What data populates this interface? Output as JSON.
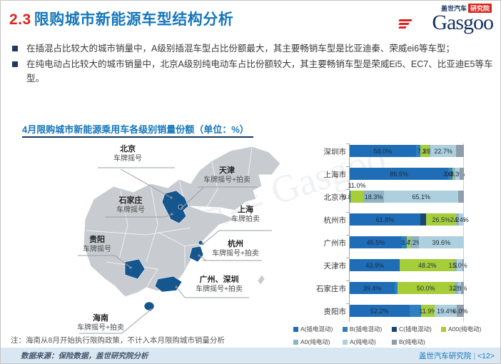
{
  "header": {
    "title_number": "2.3",
    "title_text": "限购城市新能源车型结构分析",
    "logo": {
      "badge_brand": "盖世汽车",
      "badge_unit": "研究院",
      "wordmark": "Gasgoo"
    }
  },
  "bullets": [
    "在插混占比较大的城市销量中，A级别插混车型占比份额最大，其主要畅销车型是比亚迪秦、荣威ei6等车型；",
    "在纯电动占比较大的城市销量中，北京A级别纯电动车占比份额较大，其主要畅销车型是荣威Ei5、EC7、比亚迪E5等车型。"
  ],
  "panel": {
    "title": "4月限购城市新能源乘用车各级别销量份额（单位：%）"
  },
  "map": {
    "watermark": "盖世汽车 Gasgoo",
    "callouts": [
      {
        "city": "北京",
        "policy": "车牌摇号"
      },
      {
        "city": "天津",
        "policy": "车牌摇号+拍卖"
      },
      {
        "city": "石家庄",
        "policy": "车牌摇号"
      },
      {
        "city": "上海",
        "policy": "车牌拍卖"
      },
      {
        "city": "贵阳",
        "policy": "车牌摇号"
      },
      {
        "city": "杭州",
        "policy": "车牌摇号+拍卖"
      },
      {
        "city": "广州、深圳",
        "policy": "车牌摇号+拍卖"
      },
      {
        "city": "海南",
        "policy": "车牌摇号+拍卖"
      }
    ]
  },
  "chart_data": {
    "type": "bar",
    "orientation": "horizontal_stacked",
    "unit": "%",
    "xlim": [
      0,
      100
    ],
    "title": "4月限购城市新能源乘用车各级别销量份额（单位：%）",
    "categories": [
      "深圳市",
      "上海市",
      "北京市",
      "杭州市",
      "广州市",
      "天津市",
      "石家庄市",
      "贵阳市"
    ],
    "series_names": [
      "A(插电混动)",
      "B(插电混动)",
      "C(插电混动)",
      "A00(纯电动)",
      "A0(纯电动)",
      "A(纯电动)",
      "B(纯电动)"
    ],
    "series_colors": {
      "A(插电混动)": "#1f6db6",
      "B(插电混动)": "#2f7fc1",
      "C(插电混动)": "#1c4670",
      "A00(纯电动)": "#a5ce39",
      "A0(纯电动)": "#8fb4c4",
      "A(纯电动)": "#aecfdd",
      "B(纯电动)": "#8d9dab"
    },
    "rows": [
      {
        "city": "深圳市",
        "segments": [
          {
            "series": "A(插电混动)",
            "value": 58.0,
            "label": "58.0%"
          },
          {
            "series": "B(插电混动)",
            "value": 4.0,
            "label": "",
            "estimated": true
          },
          {
            "series": "A00(纯电动)",
            "value": 7.3,
            "label": "7.3%"
          },
          {
            "series": "A0(纯电动)",
            "value": 1.3,
            "label": "1.3%"
          },
          {
            "series": "A(纯电动)",
            "value": 22.7,
            "label": "22.7%"
          },
          {
            "series": "B(纯电动)",
            "value": 6.7,
            "label": "",
            "estimated": true
          }
        ]
      },
      {
        "city": "上海市",
        "segments": [
          {
            "series": "A(插电混动)",
            "value": 86.5,
            "label": "86.5%"
          },
          {
            "series": "B(插电混动)",
            "value": 3.6,
            "label": "3.6%"
          },
          {
            "series": "A00(纯电动)",
            "value": 0.6,
            "label": "0.6%"
          },
          {
            "series": "A0(纯电动)",
            "value": 2.0,
            "label": "",
            "estimated": true
          },
          {
            "series": "A(纯电动)",
            "value": 3.3,
            "label": "3.3%"
          },
          {
            "series": "B(纯电动)",
            "value": 4.0,
            "label": "",
            "estimated": true
          }
        ]
      },
      {
        "city": "北京市",
        "segments": [
          {
            "series": "A(插电混动)",
            "value": 0.8,
            "label": "0.8%"
          },
          {
            "series": "A00(纯电动)",
            "value": 11.0,
            "label": "11.0%",
            "label_above": true
          },
          {
            "series": "A0(纯电动)",
            "value": 18.3,
            "label": "18.3%"
          },
          {
            "series": "A(纯电动)",
            "value": 65.1,
            "label": "65.1%"
          },
          {
            "series": "B(纯电动)",
            "value": 4.8,
            "label": "",
            "estimated": true
          }
        ]
      },
      {
        "city": "杭州市",
        "segments": [
          {
            "series": "A(插电混动)",
            "value": 61.8,
            "label": "61.8%"
          },
          {
            "series": "C(插电混动)",
            "value": 5.1,
            "label": "",
            "estimated": true
          },
          {
            "series": "A00(纯电动)",
            "value": 26.5,
            "label": "26.5%"
          },
          {
            "series": "A0(纯电动)",
            "value": 2.2,
            "label": "2.2%"
          },
          {
            "series": "A(纯电动)",
            "value": 4.4,
            "label": "4.4%"
          }
        ]
      },
      {
        "city": "广州市",
        "segments": [
          {
            "series": "A(插电混动)",
            "value": 45.5,
            "label": "45.5%"
          },
          {
            "series": "B(插电混动)",
            "value": 4.3,
            "label": "",
            "estimated": true
          },
          {
            "series": "A00(纯电动)",
            "value": 3.4,
            "label": "3.4%"
          },
          {
            "series": "A0(纯电动)",
            "value": 7.2,
            "label": "7.2%"
          },
          {
            "series": "A(纯电动)",
            "value": 39.6,
            "label": "39.6%"
          }
        ]
      },
      {
        "city": "天津市",
        "segments": [
          {
            "series": "A(插电混动)",
            "value": 43.9,
            "label": "43.9%"
          },
          {
            "series": "A00(纯电动)",
            "value": 48.2,
            "label": "48.2%"
          },
          {
            "series": "A0(纯电动)",
            "value": 1.9,
            "label": "1.9%"
          },
          {
            "series": "A(纯电动)",
            "value": 5.0,
            "label": "5.0%"
          },
          {
            "series": "B(纯电动)",
            "value": 1.0,
            "label": "",
            "estimated": true
          }
        ]
      },
      {
        "city": "石家庄市",
        "segments": [
          {
            "series": "A(插电混动)",
            "value": 39.4,
            "label": "39.4%"
          },
          {
            "series": "B(插电混动)",
            "value": 2.3,
            "label": "",
            "estimated": true
          },
          {
            "series": "A00(纯电动)",
            "value": 50.0,
            "label": "50.0%"
          },
          {
            "series": "A0(纯电动)",
            "value": 3.2,
            "label": "3.2%"
          },
          {
            "series": "A(纯电动)",
            "value": 2.8,
            "label": "2.8%"
          },
          {
            "series": "B(纯电动)",
            "value": 2.3,
            "label": "",
            "estimated": true
          }
        ]
      },
      {
        "city": "贵阳市",
        "segments": [
          {
            "series": "A(插电混动)",
            "value": 52.2,
            "label": "52.2%"
          },
          {
            "series": "B(插电混动)",
            "value": 10.5,
            "label": "",
            "estimated": true
          },
          {
            "series": "A00(纯电动)",
            "value": 11.9,
            "label": "11.9%"
          },
          {
            "series": "A(纯电动)",
            "value": 19.4,
            "label": "19.4%"
          },
          {
            "series": "B(纯电动)",
            "value": 6.0,
            "label": "6.0%"
          }
        ]
      }
    ],
    "legend": [
      "A(插电混动)",
      "B(插电混动)",
      "C(插电混动)",
      "A00(纯电动)",
      "A0(纯电动)",
      "A(纯电动)",
      "B(纯电动)"
    ],
    "legend_position": "bottom"
  },
  "footer": {
    "note": "注：海南从8月开始执行限购政策，不计入本月限购城市销量分析",
    "source": "数据来源：保险数据，盖世研究院分析",
    "org": "盖世汽车研究院",
    "page": "<12>"
  }
}
